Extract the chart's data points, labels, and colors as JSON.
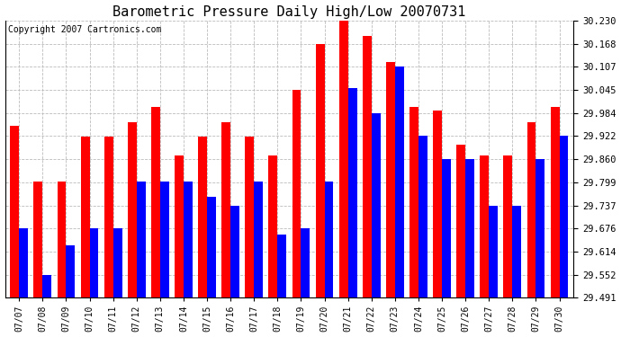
{
  "title": "Barometric Pressure Daily High/Low 20070731",
  "copyright": "Copyright 2007 Cartronics.com",
  "dates": [
    "07/07",
    "07/08",
    "07/09",
    "07/10",
    "07/11",
    "07/12",
    "07/13",
    "07/14",
    "07/15",
    "07/16",
    "07/17",
    "07/18",
    "07/19",
    "07/20",
    "07/21",
    "07/22",
    "07/23",
    "07/24",
    "07/25",
    "07/26",
    "07/27",
    "07/28",
    "07/29",
    "07/30"
  ],
  "high_values": [
    29.95,
    29.8,
    29.8,
    29.92,
    29.92,
    29.96,
    30.0,
    29.87,
    29.92,
    29.96,
    29.92,
    29.87,
    30.045,
    30.168,
    30.23,
    30.19,
    30.12,
    30.0,
    29.99,
    29.9,
    29.87,
    29.87,
    29.96,
    30.0
  ],
  "low_values": [
    29.676,
    29.552,
    29.63,
    29.676,
    29.676,
    29.8,
    29.8,
    29.8,
    29.76,
    29.737,
    29.8,
    29.66,
    29.676,
    29.8,
    30.05,
    29.984,
    30.107,
    29.922,
    29.86,
    29.86,
    29.737,
    29.737,
    29.86,
    29.922
  ],
  "ylim_min": 29.491,
  "ylim_max": 30.23,
  "yticks": [
    29.491,
    29.552,
    29.614,
    29.676,
    29.737,
    29.799,
    29.86,
    29.922,
    29.984,
    30.045,
    30.107,
    30.168,
    30.23
  ],
  "high_color": "#ff0000",
  "low_color": "#0000ff",
  "bg_color": "#ffffff",
  "grid_color": "#bbbbbb",
  "title_fontsize": 11,
  "copyright_fontsize": 7,
  "bar_width": 0.38
}
